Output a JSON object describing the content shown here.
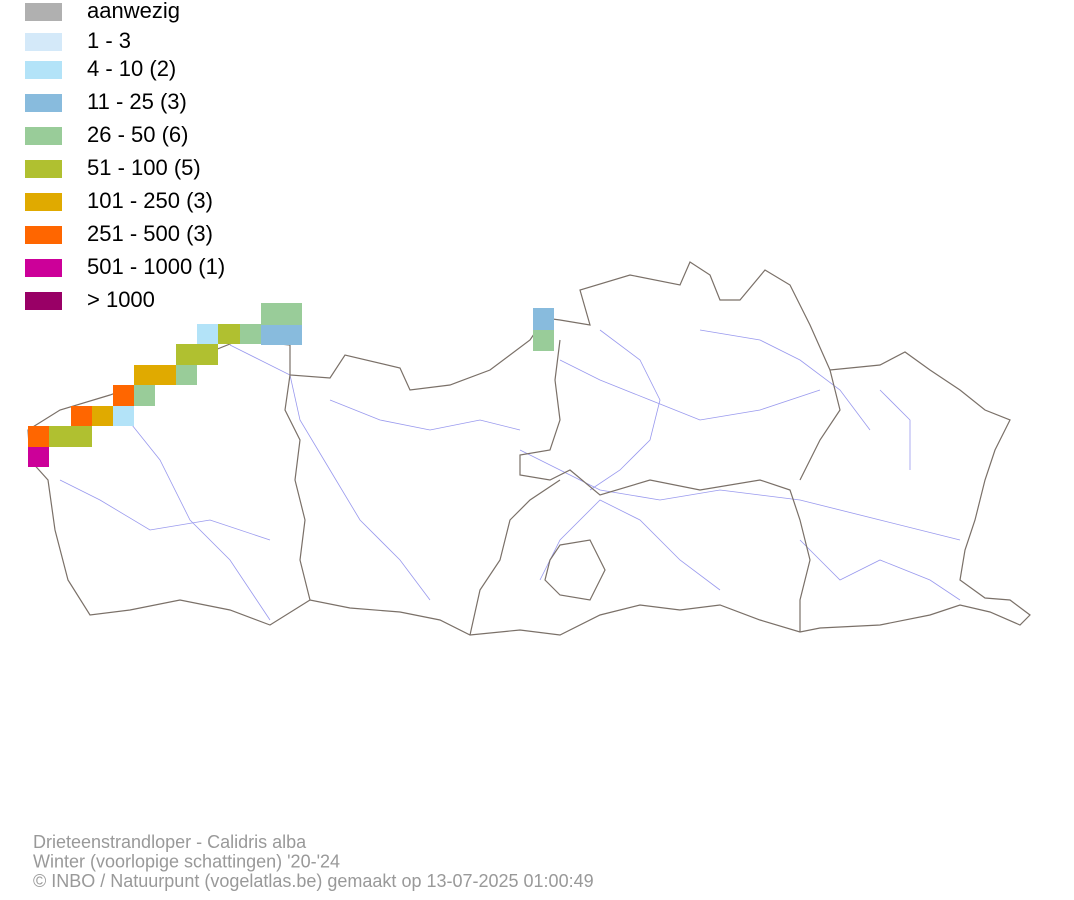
{
  "legend": {
    "items": [
      {
        "label": "aanwezig",
        "color": "#b0b0b0"
      },
      {
        "label": "1 - 3",
        "color": "#d4e9f9"
      },
      {
        "label": "4 - 10 (2)",
        "color": "#b3e3f8"
      },
      {
        "label": "11 - 25 (3)",
        "color": "#88bbdd"
      },
      {
        "label": "26 - 50 (6)",
        "color": "#99cc99"
      },
      {
        "label": "51 - 100 (5)",
        "color": "#b0c030"
      },
      {
        "label": "101 - 250 (3)",
        "color": "#e0aa00"
      },
      {
        "label": "251 - 500 (3)",
        "color": "#ff6600"
      },
      {
        "label": "501 - 1000 (1)",
        "color": "#cc0099"
      },
      {
        "label": "> 1000",
        "color": "#990066"
      }
    ]
  },
  "footer": {
    "lines": [
      "Drieteenstrandloper - Calidris alba",
      "Winter (voorlopige schattingen) '20-'24",
      "© INBO / Natuurpunt (vogelatlas.be) gemaakt op 13-07-2025 01:00:49"
    ]
  }
}
